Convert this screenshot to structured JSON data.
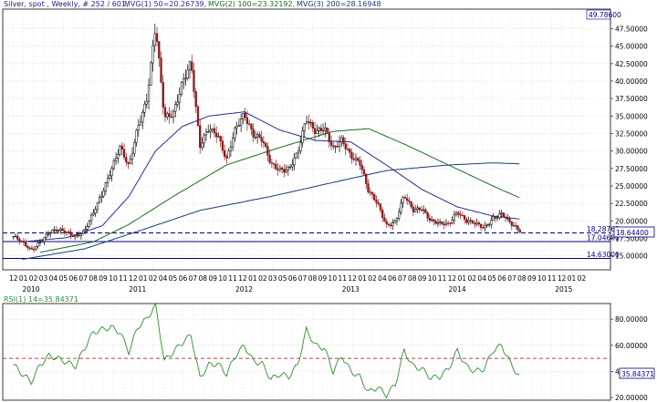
{
  "colors": {
    "background": "#ffffff",
    "grid": "#c9c9c9",
    "axis": "#3a3a3a",
    "candle_up": "#000000",
    "candle_down": "#8b1a1a",
    "mvg1": "#2a2a9a",
    "mvg2": "#1f6b1f",
    "mvg3": "#1d3a7a",
    "rsi": "#2f8f2f",
    "rsi_ref": "#a00000",
    "hline": "#000080",
    "label_text": "#000080",
    "header_text": "#1a1a8a"
  },
  "chart_data": [
    {
      "type": "candlestick",
      "title": "Silver, spot , Weekly, # 252 / 601, MVG(1) 50=20.26739, MVG(2) 100=23.32192, MVG(3) 200=28.16948",
      "header": {
        "symbol": "Silver, spot , Weekly, # 252 / 601,",
        "mvg1": "MVG(1) 50=20.26739,",
        "mvg2": "MVG(2) 100=23.32192,",
        "mvg3": "MVG(3) 200=28.16948"
      },
      "ylim": [
        13.0,
        50.3
      ],
      "y_ticks": [
        "15.00000",
        "17.50000",
        "20.00000",
        "22.50000",
        "25.00000",
        "27.50000",
        "30.00000",
        "32.50000",
        "35.00000",
        "37.50000",
        "40.00000",
        "42.50000",
        "45.00000",
        "47.50000"
      ],
      "y_tick_values": [
        15,
        17.5,
        20,
        22.5,
        25,
        27.5,
        30,
        32.5,
        35,
        37.5,
        40,
        42.5,
        45,
        47.5
      ],
      "horizontal_lines": [
        {
          "value": 18.28763,
          "label": "18.28763",
          "style": "dashed"
        },
        {
          "value": 17.0468,
          "label": "17.04680",
          "style": "solid"
        },
        {
          "value": 14.63,
          "label": "14.63000",
          "style": "solid"
        }
      ],
      "top_label": "49.78600",
      "current_label": "18.64400",
      "x_tick_labels": [
        "12",
        "01",
        "02",
        "03",
        "04",
        "05",
        "06",
        "07",
        "08",
        "09",
        "10",
        "11",
        "12",
        "01",
        "02",
        "04",
        "05",
        "06",
        "07",
        "08",
        "09",
        "10",
        "11",
        "12",
        "01",
        "02",
        "03",
        "05",
        "06",
        "07",
        "08",
        "09",
        "10",
        "11",
        "12",
        "01",
        "02",
        "04",
        "06",
        "07",
        "08",
        "09",
        "10",
        "11",
        "12",
        "01",
        "02",
        "04",
        "05",
        "06",
        "07",
        "08",
        "09",
        "10",
        "11",
        "12",
        "01",
        "02"
      ],
      "year_labels": [
        "2010",
        "2011",
        "2012",
        "2013",
        "2014",
        "2015"
      ],
      "x_range_months": [
        "2009-11",
        "2015-04"
      ],
      "close_anchors": [
        [
          "2009-12",
          17.8
        ],
        [
          "2010-01",
          16.8
        ],
        [
          "2010-02",
          15.8
        ],
        [
          "2010-03",
          17.1
        ],
        [
          "2010-04",
          18.3
        ],
        [
          "2010-05",
          18.6
        ],
        [
          "2010-06",
          18.4
        ],
        [
          "2010-07",
          17.9
        ],
        [
          "2010-08",
          18.5
        ],
        [
          "2010-09",
          21.0
        ],
        [
          "2010-10",
          24.0
        ],
        [
          "2010-11",
          27.5
        ],
        [
          "2010-12",
          30.5
        ],
        [
          "2011-01",
          27.5
        ],
        [
          "2011-02",
          33.5
        ],
        [
          "2011-03",
          37.5
        ],
        [
          "2011-04",
          47.8
        ],
        [
          "2011-05",
          34.5
        ],
        [
          "2011-06",
          35.5
        ],
        [
          "2011-07",
          40.0
        ],
        [
          "2011-08",
          42.5
        ],
        [
          "2011-09",
          30.5
        ],
        [
          "2011-10",
          33.5
        ],
        [
          "2011-11",
          32.5
        ],
        [
          "2011-12",
          28.5
        ],
        [
          "2012-01",
          33.0
        ],
        [
          "2012-02",
          35.5
        ],
        [
          "2012-03",
          32.5
        ],
        [
          "2012-04",
          31.5
        ],
        [
          "2012-05",
          28.0
        ],
        [
          "2012-06",
          27.5
        ],
        [
          "2012-07",
          27.5
        ],
        [
          "2012-08",
          29.5
        ],
        [
          "2012-09",
          34.5
        ],
        [
          "2012-10",
          33.0
        ],
        [
          "2012-11",
          33.5
        ],
        [
          "2012-12",
          30.0
        ],
        [
          "2013-01",
          31.5
        ],
        [
          "2013-02",
          29.5
        ],
        [
          "2013-03",
          28.5
        ],
        [
          "2013-04",
          24.0
        ],
        [
          "2013-05",
          22.5
        ],
        [
          "2013-06",
          19.5
        ],
        [
          "2013-07",
          19.8
        ],
        [
          "2013-08",
          23.5
        ],
        [
          "2013-09",
          21.5
        ],
        [
          "2013-10",
          22.0
        ],
        [
          "2013-11",
          20.0
        ],
        [
          "2013-12",
          19.5
        ],
        [
          "2014-01",
          19.5
        ],
        [
          "2014-02",
          21.5
        ],
        [
          "2014-03",
          20.0
        ],
        [
          "2014-04",
          19.5
        ],
        [
          "2014-05",
          19.0
        ],
        [
          "2014-06",
          20.5
        ],
        [
          "2014-07",
          21.0
        ],
        [
          "2014-08",
          19.5
        ],
        [
          "2014-09",
          18.64
        ]
      ],
      "mvg_anchors": {
        "mvg1": [
          [
            "2010-01",
            17.0
          ],
          [
            "2010-06",
            17.6
          ],
          [
            "2010-10",
            19.3
          ],
          [
            "2011-01",
            23.5
          ],
          [
            "2011-04",
            30.0
          ],
          [
            "2011-07",
            33.5
          ],
          [
            "2011-10",
            35.0
          ],
          [
            "2012-02",
            35.6
          ],
          [
            "2012-06",
            33.0
          ],
          [
            "2012-10",
            31.5
          ],
          [
            "2013-02",
            31.3
          ],
          [
            "2013-06",
            28.0
          ],
          [
            "2013-10",
            24.5
          ],
          [
            "2014-02",
            22.0
          ],
          [
            "2014-06",
            20.7
          ],
          [
            "2014-09",
            20.27
          ]
        ],
        "mvg2": [
          [
            "2010-03",
            15.5
          ],
          [
            "2010-09",
            17.0
          ],
          [
            "2011-01",
            19.5
          ],
          [
            "2011-06",
            23.5
          ],
          [
            "2011-12",
            28.0
          ],
          [
            "2012-06",
            30.5
          ],
          [
            "2012-12",
            32.8
          ],
          [
            "2013-04",
            33.2
          ],
          [
            "2013-08",
            31.0
          ],
          [
            "2014-01",
            28.0
          ],
          [
            "2014-06",
            25.0
          ],
          [
            "2014-09",
            23.32
          ]
        ],
        "mvg3": [
          [
            "2010-01",
            14.5
          ],
          [
            "2010-08",
            16.0
          ],
          [
            "2011-02",
            18.5
          ],
          [
            "2011-09",
            21.5
          ],
          [
            "2012-05",
            23.5
          ],
          [
            "2012-12",
            25.5
          ],
          [
            "2013-06",
            27.2
          ],
          [
            "2014-01",
            28.0
          ],
          [
            "2014-06",
            28.3
          ],
          [
            "2014-09",
            28.17
          ]
        ]
      }
    },
    {
      "type": "line",
      "title": "RSI(1) 14=35.84371",
      "ylim": [
        18,
        92
      ],
      "y_ticks": [
        "20.00000",
        "40.00000",
        "60.00000",
        "80.00000"
      ],
      "y_tick_values": [
        20,
        40,
        60,
        80
      ],
      "reference_line": 50,
      "current_value": 35.84371,
      "current_label": "35.84371",
      "series": [
        {
          "name": "RSI(1) 14",
          "values": [
            [
              "2009-12",
              45
            ],
            [
              "2010-01",
              38
            ],
            [
              "2010-02",
              32
            ],
            [
              "2010-03",
              45
            ],
            [
              "2010-04",
              52
            ],
            [
              "2010-05",
              50
            ],
            [
              "2010-06",
              47
            ],
            [
              "2010-07",
              44
            ],
            [
              "2010-08",
              58
            ],
            [
              "2010-09",
              70
            ],
            [
              "2010-10",
              72
            ],
            [
              "2010-11",
              74
            ],
            [
              "2010-12",
              70
            ],
            [
              "2011-01",
              55
            ],
            [
              "2011-02",
              74
            ],
            [
              "2011-03",
              80
            ],
            [
              "2011-04",
              91
            ],
            [
              "2011-05",
              48
            ],
            [
              "2011-06",
              55
            ],
            [
              "2011-07",
              62
            ],
            [
              "2011-08",
              68
            ],
            [
              "2011-09",
              35
            ],
            [
              "2011-10",
              45
            ],
            [
              "2011-11",
              46
            ],
            [
              "2011-12",
              38
            ],
            [
              "2012-01",
              52
            ],
            [
              "2012-02",
              60
            ],
            [
              "2012-03",
              48
            ],
            [
              "2012-04",
              46
            ],
            [
              "2012-05",
              34
            ],
            [
              "2012-06",
              38
            ],
            [
              "2012-07",
              36
            ],
            [
              "2012-08",
              45
            ],
            [
              "2012-09",
              72
            ],
            [
              "2012-10",
              60
            ],
            [
              "2012-11",
              58
            ],
            [
              "2012-12",
              40
            ],
            [
              "2013-01",
              52
            ],
            [
              "2013-02",
              40
            ],
            [
              "2013-03",
              36
            ],
            [
              "2013-04",
              24
            ],
            [
              "2013-05",
              28
            ],
            [
              "2013-06",
              22
            ],
            [
              "2013-07",
              30
            ],
            [
              "2013-08",
              56
            ],
            [
              "2013-09",
              44
            ],
            [
              "2013-10",
              42
            ],
            [
              "2013-11",
              35
            ],
            [
              "2013-12",
              36
            ],
            [
              "2014-01",
              42
            ],
            [
              "2014-02",
              56
            ],
            [
              "2014-03",
              44
            ],
            [
              "2014-04",
              40
            ],
            [
              "2014-05",
              42
            ],
            [
              "2014-06",
              56
            ],
            [
              "2014-07",
              60
            ],
            [
              "2014-08",
              46
            ],
            [
              "2014-09",
              35.84
            ]
          ]
        }
      ]
    }
  ]
}
